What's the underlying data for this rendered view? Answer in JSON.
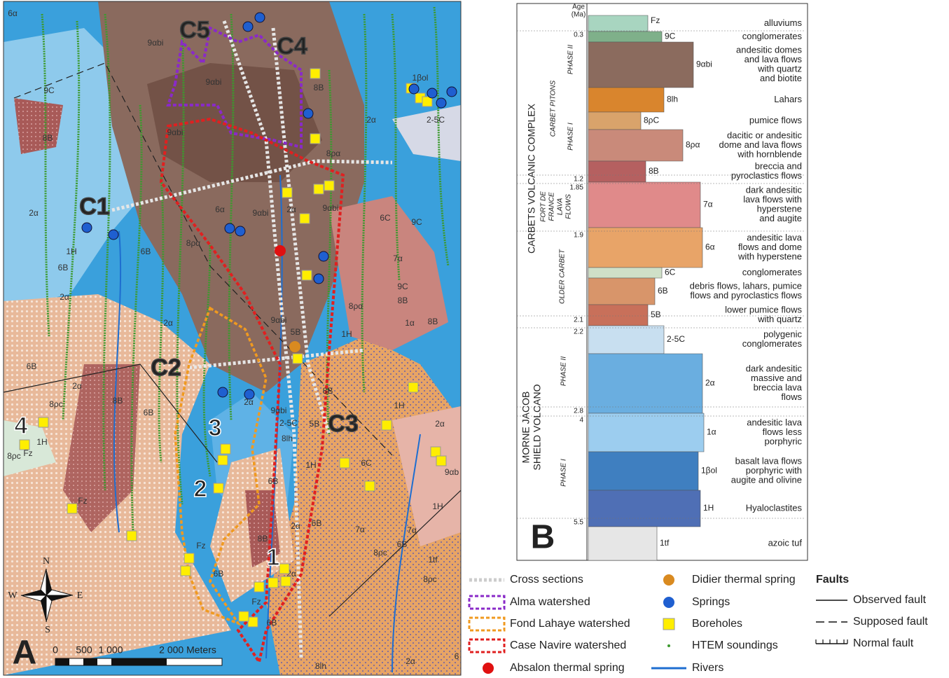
{
  "map": {
    "panel_label": "A",
    "cross_sections": [
      "C1",
      "C2",
      "C3",
      "C4",
      "C5"
    ],
    "watersheds": [
      "1",
      "2",
      "3",
      "4"
    ],
    "unit_labels": [
      "6α",
      "9αbi",
      "9αbi",
      "8B",
      "1βol",
      "9C",
      "8B",
      "9αbi",
      "2α",
      "2-5C",
      "8ρα",
      "2α",
      "6α",
      "9αbi",
      "2α",
      "9αbi",
      "6C",
      "9C",
      "1H",
      "6B",
      "8ρα",
      "6B",
      "7α",
      "2α",
      "9C",
      "8B",
      "2α",
      "9αbi",
      "8ρα",
      "1α",
      "8B",
      "5B",
      "1H",
      "6B",
      "2α",
      "8B",
      "8B",
      "1H",
      "6B",
      "2α",
      "9αbi",
      "2-5C",
      "5B",
      "8lh",
      "8ρc",
      "1H",
      "Fz",
      "8ρc",
      "6C",
      "2α",
      "9αb",
      "6B",
      "1H",
      "8B",
      "2α",
      "6B",
      "7α",
      "7α",
      "6B",
      "8ρc",
      "1tf",
      "8ρc",
      "6B",
      "2α",
      "Fz",
      "Fz",
      "6B",
      "8lh",
      "2α",
      "Fz",
      "1H",
      "6"
    ],
    "compass": [
      "N",
      "E",
      "S",
      "W"
    ],
    "scale": [
      "0",
      "500",
      "1 000",
      "2 000 Meters"
    ]
  },
  "column": {
    "panel_label": "B",
    "age_header": [
      "Age",
      "(Ma)"
    ],
    "ages": [
      "0.3",
      "1.2",
      "1.85",
      "1.9",
      "2.1",
      "2.2",
      "2.8",
      "4",
      "5.5"
    ],
    "units": [
      {
        "code": "Fz",
        "description": [
          "alluviums"
        ]
      },
      {
        "code": "9C",
        "description": [
          "conglomerates"
        ]
      },
      {
        "code": "9αbi",
        "description": [
          "andesitic domes",
          "and lava flows",
          "with quartz",
          "and biotite"
        ]
      },
      {
        "code": "8lh",
        "description": [
          "Lahars"
        ]
      },
      {
        "code": "8ρC",
        "description": [
          "pumice flows"
        ]
      },
      {
        "code": "8ρα",
        "description": [
          "dacitic or andesitic",
          "dome and lava flows",
          "with hornblende"
        ]
      },
      {
        "code": "8B",
        "description": [
          "breccia and",
          "pyroclastics flows"
        ]
      },
      {
        "code": "7α",
        "description": [
          "dark andesitic",
          "lava flows with",
          "hyperstene",
          "and augite"
        ]
      },
      {
        "code": "6α",
        "description": [
          "andesitic lava",
          "flows and dome",
          "with hyperstene"
        ]
      },
      {
        "code": "6C",
        "description": [
          "conglomerates"
        ]
      },
      {
        "code": "6B",
        "description": [
          "debris flows, lahars, pumice",
          "flows and pyroclastics flows"
        ]
      },
      {
        "code": "5B",
        "description": [
          "lower pumice flows",
          "with quartz"
        ]
      },
      {
        "code": "2-5C",
        "description": [
          "polygenic",
          "conglomerates"
        ]
      },
      {
        "code": "2α",
        "description": [
          "dark andesitic",
          "massive and",
          "breccia lava",
          "flows"
        ]
      },
      {
        "code": "1α",
        "description": [
          "andesitic lava",
          "flows less",
          "porphyric"
        ]
      },
      {
        "code": "1βol",
        "description": [
          "basalt lava flows",
          "porphyric with",
          "augite and olivine"
        ]
      },
      {
        "code": "1H",
        "description": [
          "Hyaloclastites"
        ]
      },
      {
        "code": "1tf",
        "description": [
          "azoic tuf"
        ]
      }
    ],
    "groups": [
      [
        "CARBETS VOLCANIC COMPLEX"
      ],
      [
        "CARBET PITONS"
      ],
      [
        "PHASE II"
      ],
      [
        "PHASE I"
      ],
      [
        "FORT DE",
        "FRANCE",
        "LAVA",
        "FLOWS"
      ],
      [
        "OLDER CARBET"
      ],
      [
        "MORNE JACOB",
        "SHIELD VOLCANO"
      ],
      [
        "PHASE II"
      ],
      [
        "PHASE I"
      ]
    ]
  },
  "legend": {
    "items": [
      "Cross sections",
      "Alma watershed",
      "Fond Lahaye watershed",
      "Case Navire watershed",
      "Absalon thermal spring",
      "Didier thermal spring",
      "Springs",
      "Boreholes",
      "HTEM soundings",
      "Rivers"
    ],
    "faults_title": "Faults",
    "faults": [
      "Observed fault",
      "Supposed fault",
      "Normal fault"
    ]
  }
}
